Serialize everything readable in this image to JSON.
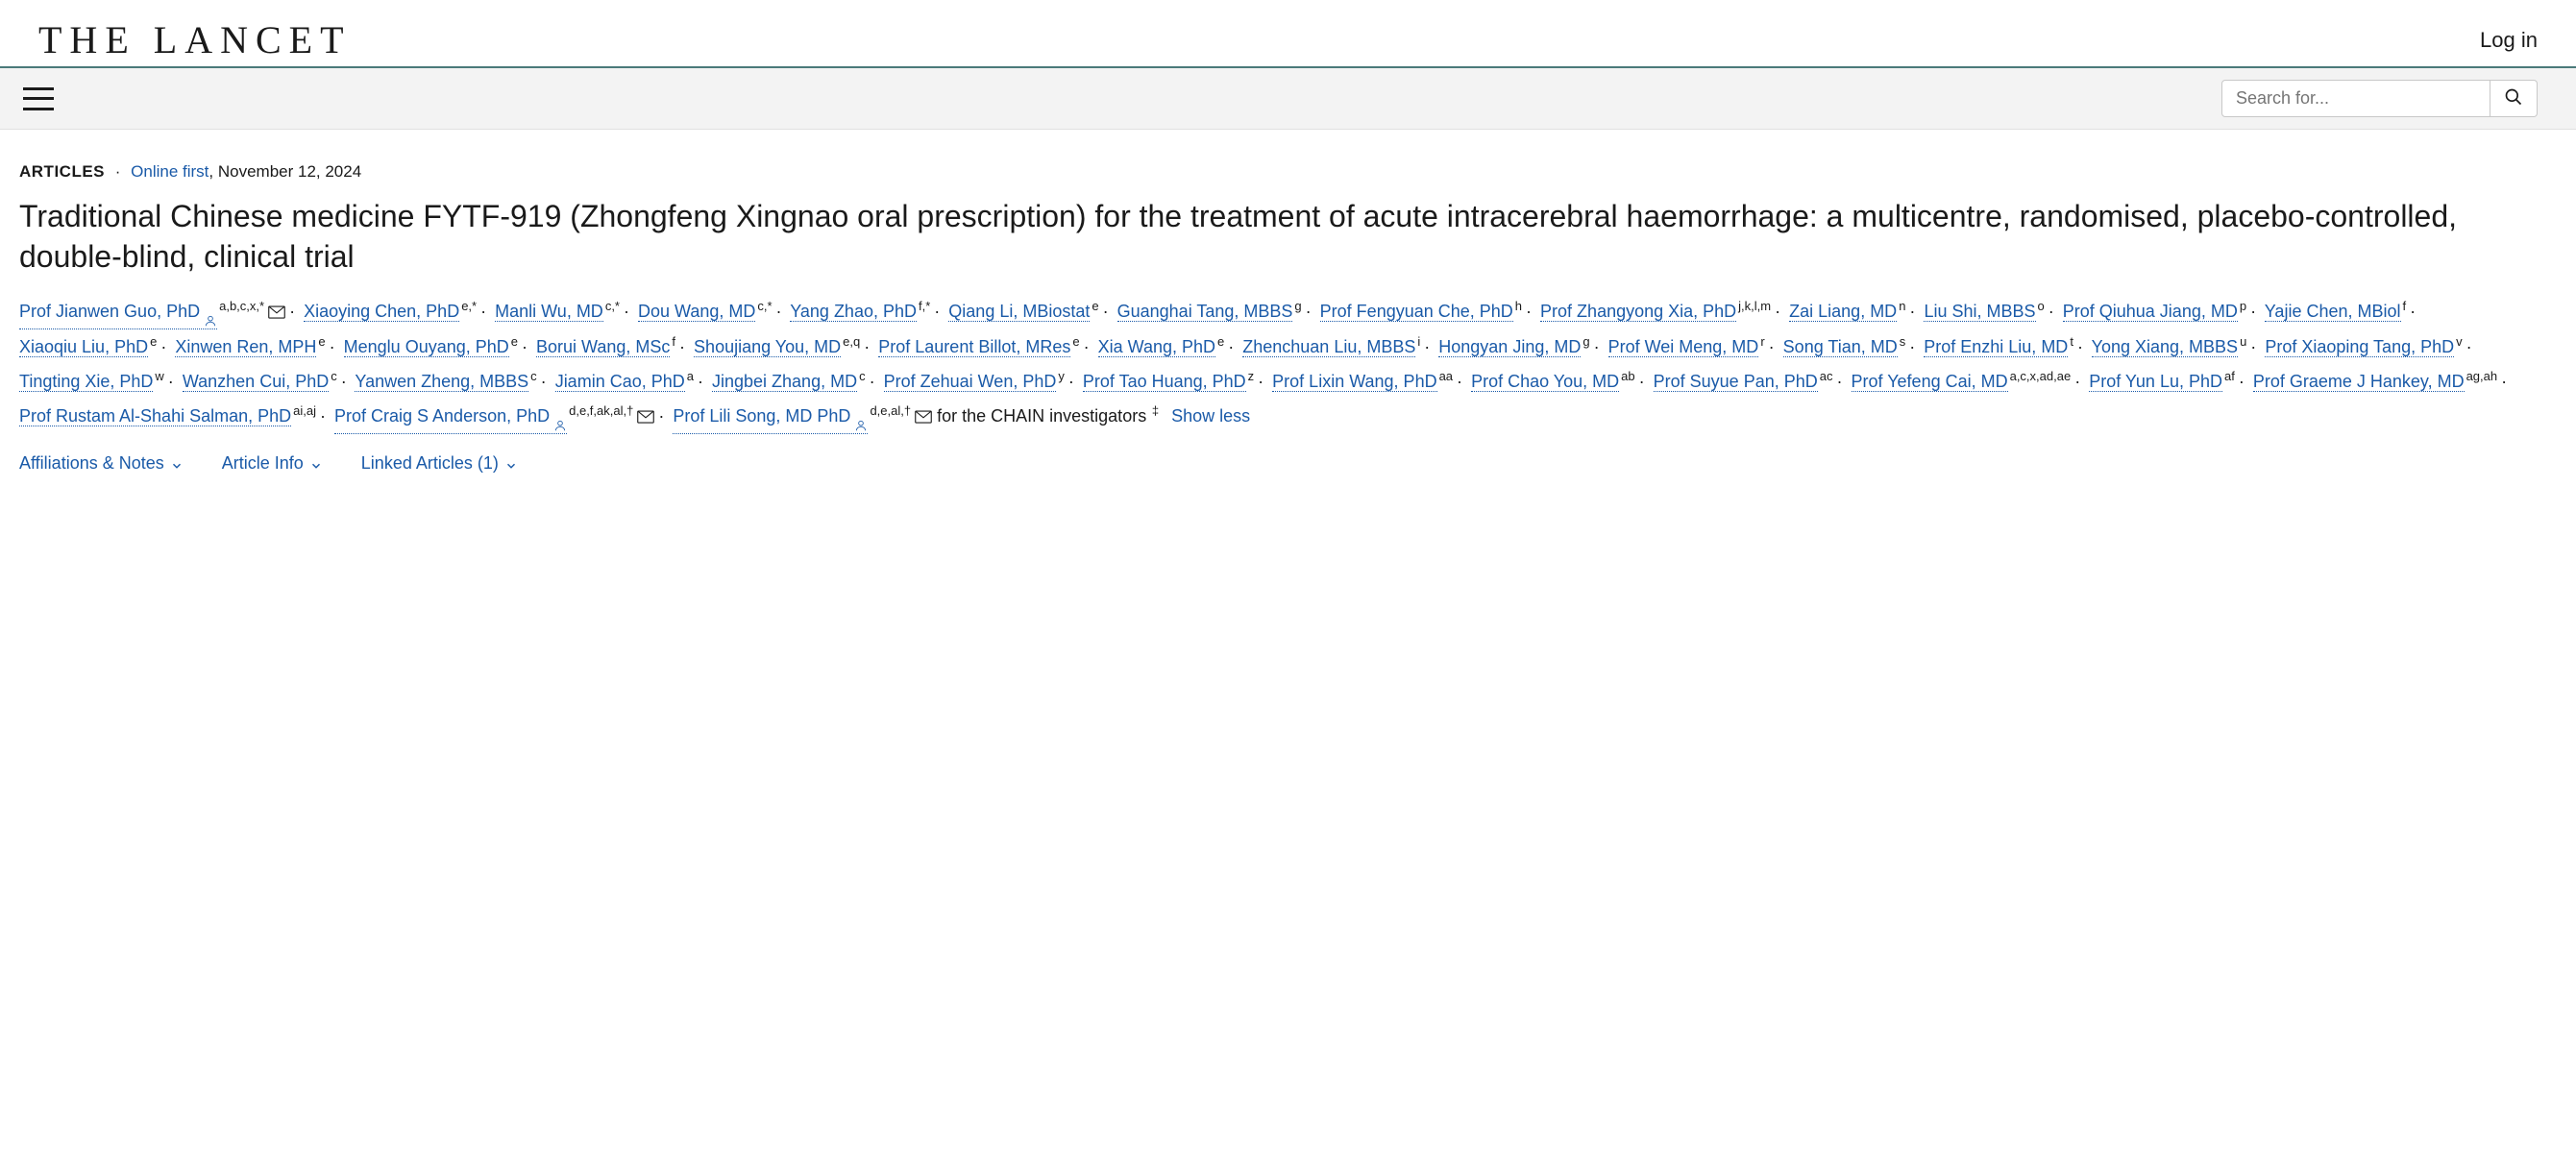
{
  "header": {
    "logo_text": "THE LANCET",
    "login_label": "Log in"
  },
  "search": {
    "placeholder": "Search for..."
  },
  "meta": {
    "category": "ARTICLES",
    "status": "Online first",
    "date": "November 12, 2024"
  },
  "title": "Traditional Chinese medicine FYTF-919 (Zhongfeng Xingnao oral prescription) for the treatment of acute intracerebral haemorrhage: a multicentre, randomised, placebo-controlled, double-blind, clinical trial",
  "authors": [
    {
      "name": "Prof Jianwen Guo, PhD",
      "aff": "a,b,c,x,*",
      "person": true,
      "mail": true
    },
    {
      "name": "Xiaoying Chen, PhD",
      "aff": "e,*"
    },
    {
      "name": "Manli Wu, MD",
      "aff": "c,*"
    },
    {
      "name": "Dou Wang, MD",
      "aff": "c,*"
    },
    {
      "name": "Yang Zhao, PhD",
      "aff": "f,*"
    },
    {
      "name": "Qiang Li, MBiostat",
      "aff": "e"
    },
    {
      "name": "Guanghai Tang, MBBS",
      "aff": "g"
    },
    {
      "name": "Prof Fengyuan Che, PhD",
      "aff": "h"
    },
    {
      "name": "Prof Zhangyong Xia, PhD",
      "aff": "j,k,l,m"
    },
    {
      "name": "Zai Liang, MD",
      "aff": "n"
    },
    {
      "name": "Liu Shi, MBBS",
      "aff": "o"
    },
    {
      "name": "Prof Qiuhua Jiang, MD",
      "aff": "p"
    },
    {
      "name": "Yajie Chen, MBiol",
      "aff": "f"
    },
    {
      "name": "Xiaoqiu Liu, PhD",
      "aff": "e"
    },
    {
      "name": "Xinwen Ren, MPH",
      "aff": "e"
    },
    {
      "name": "Menglu Ouyang, PhD",
      "aff": "e"
    },
    {
      "name": "Borui Wang, MSc",
      "aff": "f"
    },
    {
      "name": "Shoujiang You, MD",
      "aff": "e,q"
    },
    {
      "name": "Prof Laurent Billot, MRes",
      "aff": "e"
    },
    {
      "name": "Xia Wang, PhD",
      "aff": "e"
    },
    {
      "name": "Zhenchuan Liu, MBBS",
      "aff": "i"
    },
    {
      "name": "Hongyan Jing, MD",
      "aff": "g"
    },
    {
      "name": "Prof Wei Meng, MD",
      "aff": "r"
    },
    {
      "name": "Song Tian, MD",
      "aff": "s"
    },
    {
      "name": "Prof Enzhi Liu, MD",
      "aff": "t"
    },
    {
      "name": "Yong Xiang, MBBS",
      "aff": "u"
    },
    {
      "name": "Prof Xiaoping Tang, PhD",
      "aff": "v"
    },
    {
      "name": "Tingting Xie, PhD",
      "aff": "w"
    },
    {
      "name": "Wanzhen Cui, PhD",
      "aff": "c"
    },
    {
      "name": "Yanwen Zheng, MBBS",
      "aff": "c"
    },
    {
      "name": "Jiamin Cao, PhD",
      "aff": "a"
    },
    {
      "name": "Jingbei Zhang, MD",
      "aff": "c"
    },
    {
      "name": "Prof Zehuai Wen, PhD",
      "aff": "y"
    },
    {
      "name": "Prof Tao Huang, PhD",
      "aff": "z"
    },
    {
      "name": "Prof Lixin Wang, PhD",
      "aff": "aa"
    },
    {
      "name": "Prof Chao You, MD",
      "aff": "ab"
    },
    {
      "name": "Prof Suyue Pan, PhD",
      "aff": "ac"
    },
    {
      "name": "Prof Yefeng Cai, MD",
      "aff": "a,c,x,ad,ae"
    },
    {
      "name": "Prof Yun Lu, PhD",
      "aff": "af"
    },
    {
      "name": "Prof Graeme J Hankey, MD",
      "aff": "ag,ah"
    },
    {
      "name": "Prof Rustam Al-Shahi Salman, PhD",
      "aff": "ai,aj"
    },
    {
      "name": "Prof Craig S Anderson, PhD",
      "aff": "d,e,f,ak,al,†",
      "person": true,
      "mail": true
    },
    {
      "name": "Prof Lili Song, MD PhD",
      "aff": "d,e,al,†",
      "person": true,
      "mail": true
    }
  ],
  "trailer": "for the CHAIN investigators",
  "trailer_aff": "‡",
  "show_less": "Show less",
  "expanders": {
    "affiliations": "Affiliations & Notes",
    "article_info": "Article Info",
    "linked": "Linked Articles (1)"
  },
  "colors": {
    "link": "#1a5aa8",
    "text": "#1a1a1a",
    "navbar_bg": "#f3f3f3",
    "navbar_border": "#4a7a7a"
  }
}
